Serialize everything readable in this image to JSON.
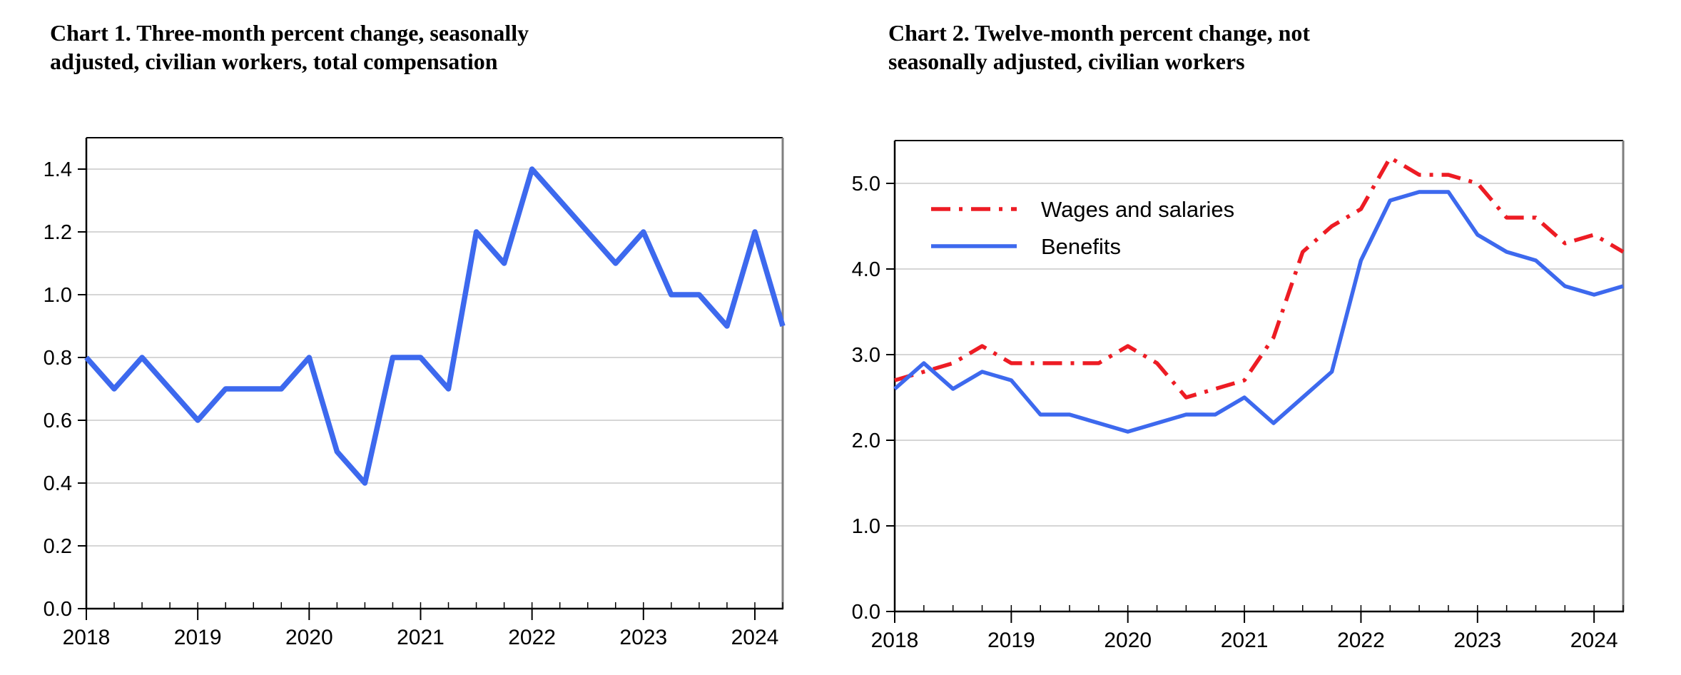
{
  "figure": {
    "background": "#ffffff",
    "text_color": "#000000",
    "gridline_color": "#c8c8c8",
    "axis_color": "#000000",
    "right_border_color": "#7f7f7f"
  },
  "chart_data": [
    {
      "type": "line",
      "title": "Chart 1. Three-month percent change, seasonally adjusted, civilian workers, total compensation",
      "title_lines": [
        "Chart 1. Three-month percent change, seasonally",
        "adjusted, civilian workers, total compensation"
      ],
      "categories": [
        "2018 Q1",
        "2018 Q2",
        "2018 Q3",
        "2018 Q4",
        "2019 Q1",
        "2019 Q2",
        "2019 Q3",
        "2019 Q4",
        "2020 Q1",
        "2020 Q2",
        "2020 Q3",
        "2020 Q4",
        "2021 Q1",
        "2021 Q2",
        "2021 Q3",
        "2021 Q4",
        "2022 Q1",
        "2022 Q2",
        "2022 Q3",
        "2022 Q4",
        "2023 Q1",
        "2023 Q2",
        "2023 Q3",
        "2023 Q4",
        "2024 Q1",
        "2024 Q2"
      ],
      "series": [
        {
          "name": "Total compensation",
          "color": "#3d69ee",
          "line_style": "solid",
          "values": [
            0.8,
            0.7,
            0.8,
            0.7,
            0.6,
            0.7,
            0.7,
            0.7,
            0.8,
            0.5,
            0.4,
            0.8,
            0.8,
            0.7,
            1.2,
            1.1,
            1.4,
            1.3,
            1.2,
            1.1,
            1.2,
            1.0,
            1.0,
            0.9,
            1.2,
            0.9
          ]
        }
      ],
      "xlabel": "",
      "ylabel": "",
      "ylim": [
        0,
        1.5
      ],
      "yticks": [
        0.0,
        0.2,
        0.4,
        0.6,
        0.8,
        1.0,
        1.2,
        1.4
      ],
      "ytick_labels": [
        "0.0",
        "0.2",
        "0.4",
        "0.6",
        "0.8",
        "1.0",
        "1.2",
        "1.4"
      ],
      "xtick_labels": [
        "2018",
        "2019",
        "2020",
        "2021",
        "2022",
        "2023",
        "2024"
      ],
      "grid": true,
      "legend_position": "none"
    },
    {
      "type": "line",
      "title": "Chart 2. Twelve-month percent change, not seasonally adjusted, civilian workers",
      "title_lines": [
        "Chart 2. Twelve-month percent change, not",
        "seasonally adjusted, civilian workers"
      ],
      "categories": [
        "2018 Q1",
        "2018 Q2",
        "2018 Q3",
        "2018 Q4",
        "2019 Q1",
        "2019 Q2",
        "2019 Q3",
        "2019 Q4",
        "2020 Q1",
        "2020 Q2",
        "2020 Q3",
        "2020 Q4",
        "2021 Q1",
        "2021 Q2",
        "2021 Q3",
        "2021 Q4",
        "2022 Q1",
        "2022 Q2",
        "2022 Q3",
        "2022 Q4",
        "2023 Q1",
        "2023 Q2",
        "2023 Q3",
        "2023 Q4",
        "2024 Q1",
        "2024 Q2"
      ],
      "series": [
        {
          "name": "Wages and salaries",
          "color": "#ed1c24",
          "line_style": "dash-dot",
          "values": [
            2.7,
            2.8,
            2.9,
            3.1,
            2.9,
            2.9,
            2.9,
            2.9,
            3.1,
            2.9,
            2.5,
            2.6,
            2.7,
            3.2,
            4.2,
            4.5,
            4.7,
            5.3,
            5.1,
            5.1,
            5.0,
            4.6,
            4.6,
            4.3,
            4.4,
            4.2
          ]
        },
        {
          "name": "Benefits",
          "color": "#3d69ee",
          "line_style": "solid",
          "values": [
            2.6,
            2.9,
            2.6,
            2.8,
            2.7,
            2.3,
            2.3,
            2.2,
            2.1,
            2.2,
            2.3,
            2.3,
            2.5,
            2.2,
            2.5,
            2.8,
            4.1,
            4.8,
            4.9,
            4.9,
            4.4,
            4.2,
            4.1,
            3.8,
            3.7,
            3.8
          ]
        }
      ],
      "xlabel": "",
      "ylabel": "",
      "ylim": [
        0,
        5.5
      ],
      "yticks": [
        0.0,
        1.0,
        2.0,
        3.0,
        4.0,
        5.0
      ],
      "ytick_labels": [
        "0.0",
        "1.0",
        "2.0",
        "3.0",
        "4.0",
        "5.0"
      ],
      "xtick_labels": [
        "2018",
        "2019",
        "2020",
        "2021",
        "2022",
        "2023",
        "2024"
      ],
      "grid": true,
      "legend_position": "top-left"
    }
  ]
}
